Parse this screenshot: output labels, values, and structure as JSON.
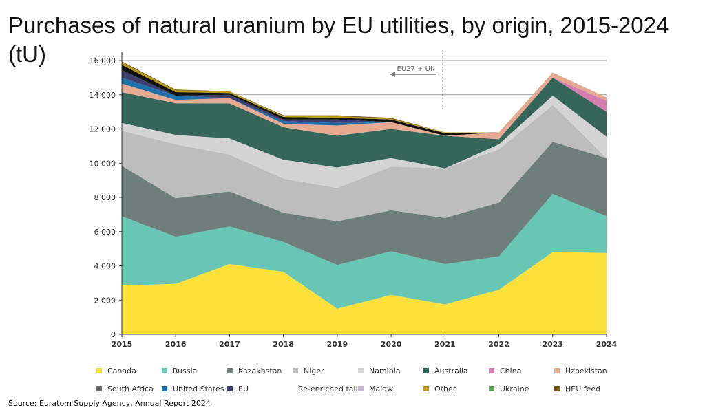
{
  "title": "Purchases of natural uranium by EU utilities, by origin, 2015-2024 (tU)",
  "source": "Source: Euratom Supply Agency, Annual Report 2024",
  "chart_data": {
    "type": "area",
    "stacked": true,
    "x": [
      2015,
      2016,
      2017,
      2018,
      2019,
      2020,
      2021,
      2022,
      2023,
      2024
    ],
    "x_tick_labels": [
      "2015",
      "2016",
      "2017",
      "2018",
      "2019",
      "2020",
      "2021",
      "2022",
      "2023",
      "2024"
    ],
    "ylim": [
      0,
      16000
    ],
    "y_ticks": [
      0,
      2000,
      4000,
      6000,
      8000,
      10000,
      12000,
      14000,
      16000
    ],
    "y_tick_labels": [
      "0",
      "2 000",
      "4 000",
      "6 000",
      "8 000",
      "10 000",
      "12 000",
      "14 000",
      "16 000"
    ],
    "grid": "horizontal lines at 14 000 and 16 000",
    "legend_position": "bottom",
    "annotation": {
      "text": "EU27 + UK",
      "note": "arrow pointing left, dotted vertical divider near 2021"
    },
    "series": [
      {
        "name": "Canada",
        "color": "#FCE03C",
        "values": [
          2850,
          2950,
          4100,
          3650,
          1500,
          2300,
          1750,
          2600,
          4800,
          4750
        ]
      },
      {
        "name": "Russia",
        "color": "#67C6B4",
        "values": [
          4050,
          2750,
          2200,
          1750,
          2550,
          2550,
          2350,
          1950,
          3400,
          2150
        ]
      },
      {
        "name": "Kazakhstan",
        "color": "#6E7F7B",
        "values": [
          2950,
          2250,
          2050,
          1700,
          2550,
          2400,
          2700,
          3150,
          3050,
          3400
        ]
      },
      {
        "name": "Niger",
        "color": "#BDBDBD",
        "values": [
          2050,
          3150,
          2150,
          2000,
          1950,
          2550,
          2900,
          3100,
          2150,
          0
        ]
      },
      {
        "name": "Namibia",
        "color": "#D4D4D4",
        "values": [
          450,
          550,
          950,
          1100,
          1200,
          500,
          0,
          300,
          550,
          1250
        ]
      },
      {
        "name": "Australia",
        "color": "#356659",
        "values": [
          1800,
          1850,
          2050,
          1900,
          1850,
          1700,
          1900,
          300,
          1050,
          1450
        ]
      },
      {
        "name": "China",
        "color": "#D37DB0",
        "values": [
          0,
          0,
          0,
          0,
          0,
          0,
          0,
          0,
          0,
          650
        ]
      },
      {
        "name": "Uzbekistan",
        "color": "#E6AA92",
        "values": [
          500,
          200,
          300,
          200,
          600,
          400,
          0,
          400,
          300,
          200
        ]
      },
      {
        "name": "South Africa",
        "color": "#6E6E6E",
        "values": [
          0,
          0,
          0,
          0,
          0,
          0,
          0,
          0,
          0,
          0
        ]
      },
      {
        "name": "United States",
        "color": "#1F6FA8",
        "values": [
          350,
          250,
          0,
          150,
          150,
          0,
          0,
          0,
          0,
          0
        ]
      },
      {
        "name": "EU",
        "color": "#3C3F6E",
        "values": [
          450,
          0,
          200,
          100,
          200,
          0,
          0,
          0,
          0,
          0
        ]
      },
      {
        "name": "Re-enriched tails",
        "color": "#111111",
        "values": [
          300,
          200,
          100,
          150,
          100,
          150,
          150,
          0,
          0,
          0
        ]
      },
      {
        "name": "Malawi",
        "color": "#C9B4D1",
        "values": [
          0,
          0,
          0,
          0,
          0,
          0,
          0,
          0,
          0,
          0
        ]
      },
      {
        "name": "Other",
        "color": "#B89A18",
        "values": [
          150,
          100,
          100,
          50,
          100,
          50,
          50,
          0,
          0,
          0
        ]
      },
      {
        "name": "Ukraine",
        "color": "#5E9E5A",
        "values": [
          0,
          0,
          0,
          0,
          0,
          0,
          0,
          0,
          0,
          0
        ]
      },
      {
        "name": "HEU feed",
        "color": "#7A5C14",
        "values": [
          50,
          50,
          0,
          50,
          50,
          50,
          0,
          0,
          0,
          0
        ]
      }
    ]
  }
}
